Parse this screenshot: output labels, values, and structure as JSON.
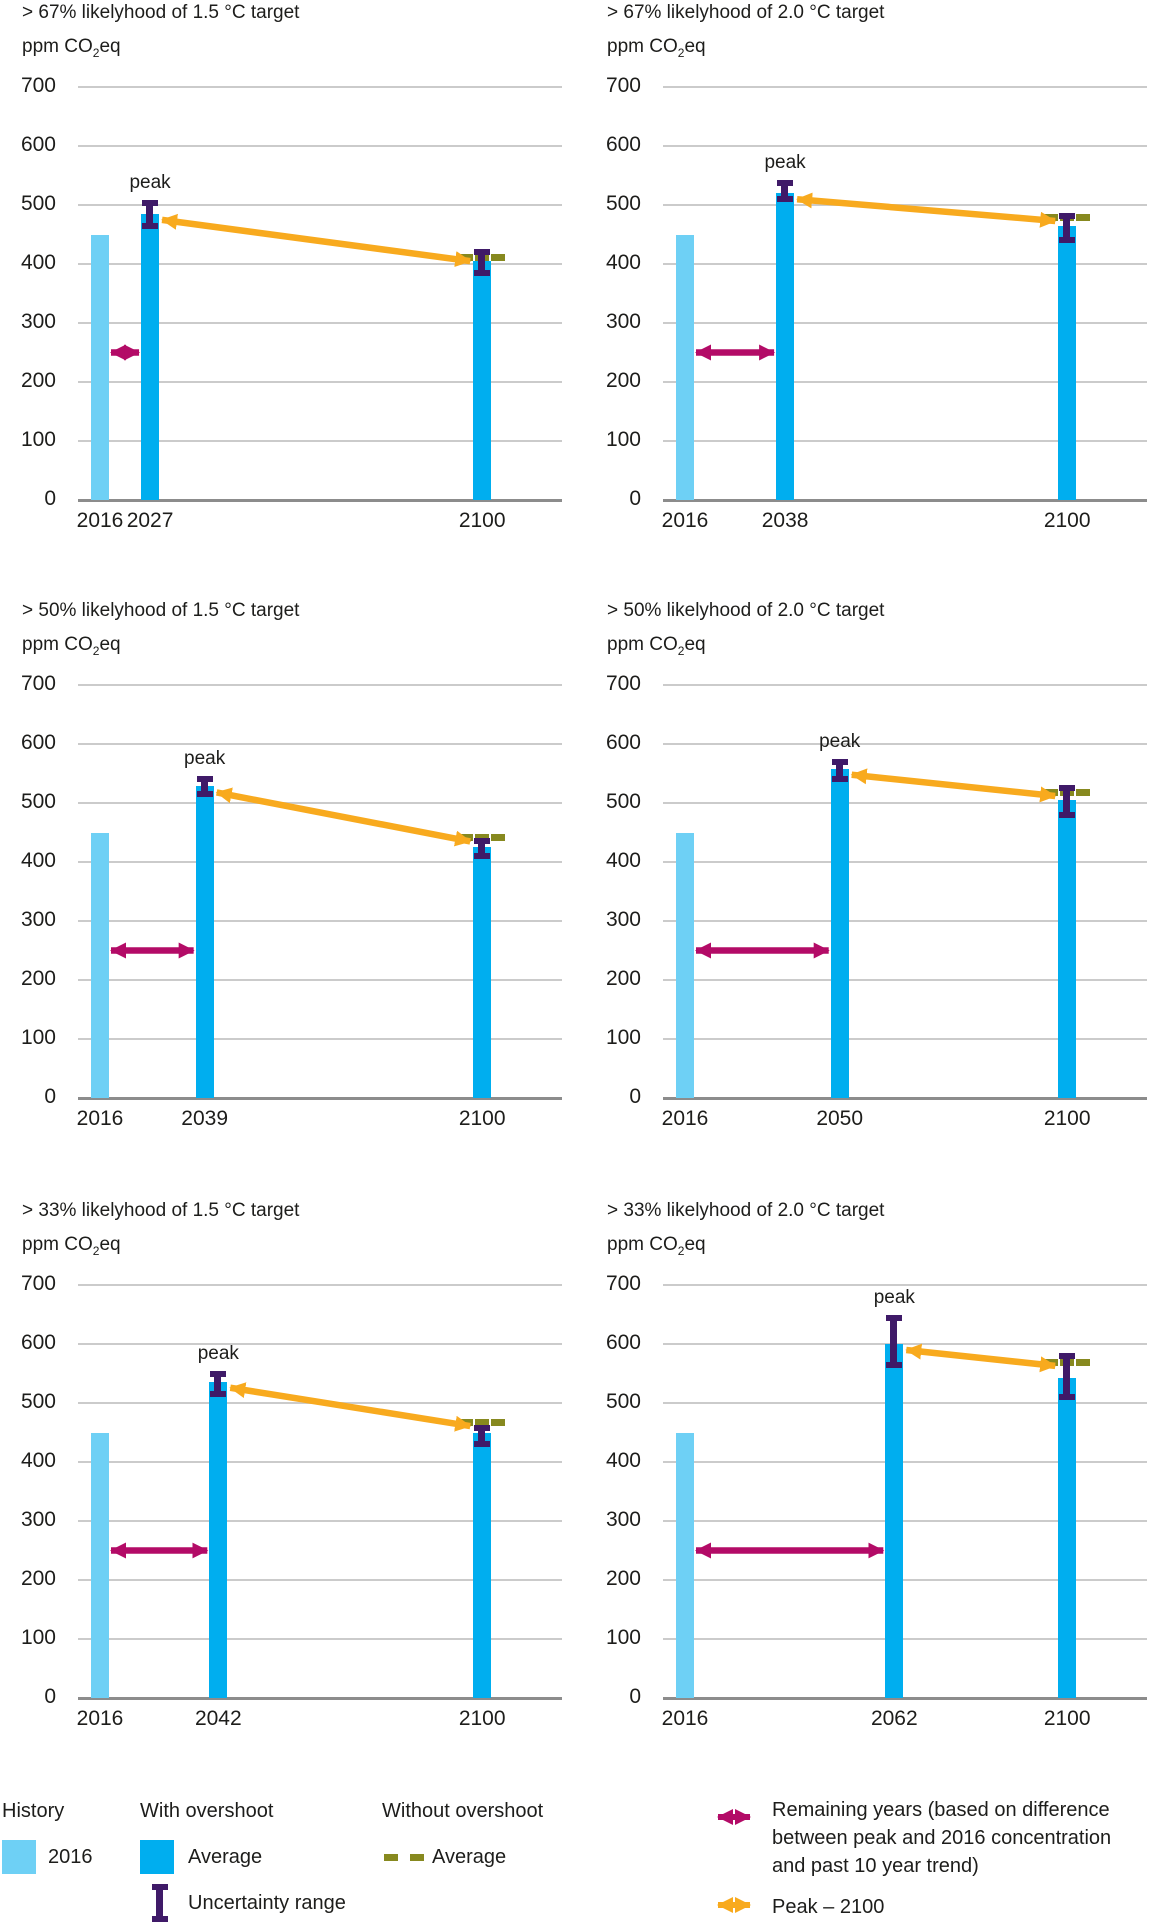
{
  "axis": {
    "ylabel_prefix": "ppm CO",
    "ylabel_sub": "2",
    "ylabel_suffix": "eq",
    "yticks": [
      700,
      600,
      500,
      400,
      300,
      200,
      100,
      0
    ],
    "ylim": [
      0,
      700
    ],
    "grid": true
  },
  "colors": {
    "history": "#6ED0F5",
    "average": "#00AEEF",
    "uncertainty": "#3F1A68",
    "without_overshoot": "#87891F",
    "remaining_years": "#B30B67",
    "peak_2100_arrow": "#F8AA1E",
    "gridline": "#CBCBCB",
    "axisline": "#8C8C8C",
    "text": "#1D1D1B"
  },
  "chart_data": [
    {
      "type": "bar",
      "title": "> 67% likelyhood of 1.5 °C target",
      "ylabel": "ppm CO2eq",
      "x_labels": [
        "2016",
        "2027",
        "2100"
      ],
      "peak_label": "peak",
      "series": {
        "history_2016": 450,
        "peak": {
          "year": 2027,
          "value": 485,
          "uncertainty": [
            460,
            508
          ]
        },
        "year2100": {
          "value": 405,
          "uncertainty": [
            380,
            425
          ],
          "without_overshoot_average": 410
        }
      },
      "remaining_years_arrow_level": 250
    },
    {
      "type": "bar",
      "title": "> 67% likelyhood of 2.0 °C target",
      "ylabel": "ppm CO2eq",
      "x_labels": [
        "2016",
        "2038",
        "2100"
      ],
      "peak_label": "peak",
      "series": {
        "history_2016": 450,
        "peak": {
          "year": 2038,
          "value": 520,
          "uncertainty": [
            505,
            542
          ]
        },
        "year2100": {
          "value": 465,
          "uncertainty": [
            435,
            487
          ],
          "without_overshoot_average": 478
        }
      },
      "remaining_years_arrow_level": 250
    },
    {
      "type": "bar",
      "title": "> 50% likelyhood of 1.5 °C target",
      "ylabel": "ppm CO2eq",
      "x_labels": [
        "2016",
        "2039",
        "2100"
      ],
      "peak_label": "peak",
      "series": {
        "history_2016": 450,
        "peak": {
          "year": 2039,
          "value": 528,
          "uncertainty": [
            510,
            545
          ]
        },
        "year2100": {
          "value": 425,
          "uncertainty": [
            405,
            440
          ],
          "without_overshoot_average": 440
        }
      },
      "remaining_years_arrow_level": 250
    },
    {
      "type": "bar",
      "title": "> 50% likelyhood of 2.0 °C target",
      "ylabel": "ppm CO2eq",
      "x_labels": [
        "2016",
        "2050",
        "2100"
      ],
      "peak_label": "peak",
      "series": {
        "history_2016": 450,
        "peak": {
          "year": 2050,
          "value": 558,
          "uncertainty": [
            535,
            575
          ]
        },
        "year2100": {
          "value": 505,
          "uncertainty": [
            475,
            530
          ],
          "without_overshoot_average": 517
        }
      },
      "remaining_years_arrow_level": 250
    },
    {
      "type": "bar",
      "title": "> 33% likelyhood of 1.5 °C target",
      "ylabel": "ppm CO2eq",
      "x_labels": [
        "2016",
        "2042",
        "2100"
      ],
      "peak_label": "peak",
      "series": {
        "history_2016": 450,
        "peak": {
          "year": 2042,
          "value": 536,
          "uncertainty": [
            510,
            555
          ]
        },
        "year2100": {
          "value": 450,
          "uncertainty": [
            425,
            462
          ],
          "without_overshoot_average": 466
        }
      },
      "remaining_years_arrow_level": 250
    },
    {
      "type": "bar",
      "title": "> 33% likelyhood of 2.0 °C target",
      "ylabel": "ppm CO2eq",
      "x_labels": [
        "2016",
        "2062",
        "2100"
      ],
      "peak_label": "peak",
      "series": {
        "history_2016": 450,
        "peak": {
          "year": 2062,
          "value": 600,
          "uncertainty": [
            560,
            650
          ]
        },
        "year2100": {
          "value": 543,
          "uncertainty": [
            505,
            585
          ],
          "without_overshoot_average": 568
        }
      },
      "remaining_years_arrow_level": 250
    }
  ],
  "legend": {
    "history": {
      "header": "History",
      "item_2016": "2016"
    },
    "with_overshoot": {
      "header": "With overshoot",
      "average": "Average",
      "uncertainty": "Uncertainty range"
    },
    "without_overshoot": {
      "header": "Without overshoot",
      "average": "Average"
    },
    "remaining_years": "Remaining years (based on difference between peak and 2016 concentration and past 10 year trend)",
    "peak_2100": "Peak – 2100"
  }
}
